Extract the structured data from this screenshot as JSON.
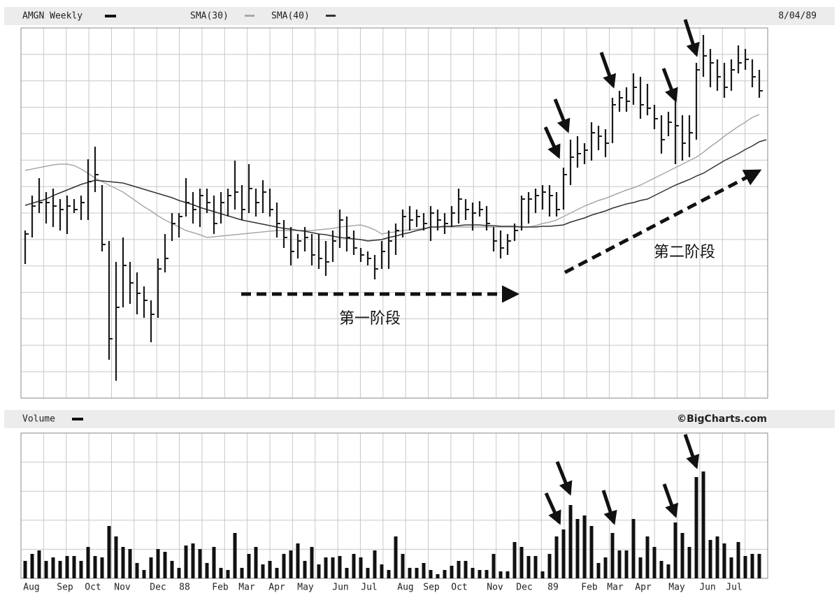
{
  "chart_data": [
    {
      "type": "ohlc",
      "title": "AMGN Weekly",
      "date": "8/04/89",
      "color": "#1a1a1a",
      "ylim": [
        0,
        530
      ],
      "grid": true,
      "annotations": [
        "第一阶段",
        "第二阶段"
      ],
      "high": [
        240,
        290,
        315,
        295,
        300,
        285,
        290,
        285,
        290,
        342,
        360,
        305,
        225,
        195,
        230,
        195,
        180,
        160,
        140,
        200,
        235,
        265,
        265,
        315,
        295,
        300,
        300,
        290,
        295,
        300,
        340,
        305,
        335,
        300,
        312,
        300,
        280,
        255,
        245,
        235,
        245,
        235,
        235,
        225,
        240,
        270,
        260,
        240,
        215,
        210,
        205,
        225,
        240,
        250,
        270,
        275,
        270,
        265,
        275,
        270,
        265,
        275,
        300,
        285,
        280,
        282,
        275,
        245,
        240,
        235,
        250,
        290,
        295,
        300,
        305,
        305,
        295,
        330,
        370,
        375,
        365,
        395,
        390,
        385,
        430,
        440,
        445,
        465,
        460,
        450,
        420,
        405,
        410,
        425,
        405,
        405,
        480,
        520,
        500,
        485,
        480,
        485,
        505,
        500,
        485,
        470
      ],
      "low": [
        192,
        230,
        265,
        250,
        245,
        240,
        235,
        265,
        255,
        255,
        295,
        210,
        55,
        25,
        130,
        135,
        120,
        115,
        80,
        115,
        180,
        225,
        230,
        260,
        250,
        245,
        265,
        235,
        250,
        260,
        270,
        255,
        265,
        260,
        265,
        260,
        230,
        215,
        190,
        200,
        210,
        190,
        185,
        175,
        195,
        215,
        210,
        205,
        195,
        190,
        170,
        185,
        185,
        205,
        230,
        240,
        245,
        240,
        225,
        240,
        235,
        245,
        250,
        255,
        240,
        260,
        240,
        210,
        200,
        205,
        225,
        240,
        250,
        265,
        270,
        260,
        260,
        270,
        305,
        330,
        335,
        340,
        355,
        345,
        365,
        410,
        410,
        420,
        400,
        405,
        385,
        350,
        375,
        335,
        340,
        345,
        370,
        460,
        445,
        440,
        430,
        440,
        465,
        470,
        445,
        430
      ],
      "close": [
        235,
        275,
        280,
        280,
        275,
        270,
        275,
        270,
        280,
        310,
        320,
        220,
        85,
        130,
        190,
        165,
        150,
        140,
        120,
        185,
        200,
        250,
        260,
        280,
        270,
        290,
        280,
        250,
        280,
        290,
        295,
        270,
        300,
        280,
        295,
        270,
        250,
        230,
        210,
        225,
        230,
        205,
        200,
        195,
        225,
        255,
        230,
        215,
        205,
        200,
        185,
        210,
        225,
        240,
        260,
        255,
        260,
        250,
        265,
        255,
        250,
        265,
        285,
        270,
        265,
        270,
        250,
        225,
        215,
        225,
        240,
        285,
        285,
        290,
        295,
        290,
        270,
        320,
        345,
        350,
        355,
        380,
        375,
        365,
        420,
        430,
        425,
        445,
        420,
        415,
        400,
        370,
        395,
        390,
        365,
        380,
        470,
        490,
        480,
        460,
        445,
        470,
        480,
        485,
        460,
        440
      ],
      "series": [
        {
          "name": "SMA(30)",
          "color": "#a8a8a8",
          "values": [
            326,
            328,
            330,
            332,
            334,
            335,
            335,
            333,
            328,
            322,
            315,
            310,
            305,
            300,
            295,
            288,
            281,
            274,
            268,
            261,
            255,
            250,
            245,
            240,
            237,
            234,
            230,
            231,
            232,
            233,
            234,
            235,
            236,
            237,
            238,
            239,
            240,
            240,
            240,
            240,
            240,
            240,
            241,
            242,
            243,
            245,
            246,
            247,
            248,
            245,
            241,
            235,
            237,
            238,
            240,
            241,
            242,
            243,
            245,
            245,
            245,
            245,
            245,
            245,
            245,
            245,
            245,
            245,
            245,
            245,
            245,
            245,
            245,
            247,
            250,
            252,
            255,
            260,
            265,
            270,
            275,
            279,
            283,
            286,
            290,
            294,
            298,
            301,
            305,
            310,
            315,
            320,
            325,
            330,
            335,
            340,
            345,
            352,
            360,
            367,
            375,
            382,
            389,
            395,
            402,
            406
          ]
        },
        {
          "name": "SMA(40)",
          "color": "#333333",
          "values": [
            276,
            279,
            282,
            285,
            290,
            294,
            298,
            302,
            306,
            309,
            312,
            311,
            310,
            309,
            308,
            305,
            302,
            299,
            296,
            293,
            290,
            287,
            283,
            280,
            277,
            273,
            270,
            267,
            264,
            261,
            258,
            255,
            253,
            251,
            249,
            247,
            245,
            243,
            242,
            240,
            239,
            237,
            235,
            234,
            232,
            230,
            229,
            228,
            227,
            225,
            226,
            227,
            230,
            232,
            235,
            237,
            240,
            242,
            245,
            245,
            246,
            246,
            247,
            248,
            248,
            248,
            247,
            247,
            246,
            246,
            246,
            245,
            245,
            245,
            246,
            246,
            247,
            248,
            252,
            255,
            258,
            262,
            265,
            268,
            272,
            275,
            278,
            280,
            283,
            285,
            290,
            295,
            300,
            305,
            309,
            313,
            318,
            322,
            328,
            334,
            340,
            345,
            350,
            356,
            361,
            367,
            370
          ]
        }
      ]
    },
    {
      "type": "bar",
      "title": "Volume",
      "source": "©BigCharts.com",
      "color": "#111111",
      "ylim": [
        0,
        208
      ],
      "grid": true,
      "x_labels": [
        "Aug",
        "Sep",
        "Oct",
        "Nov",
        "Dec",
        "88",
        "Feb",
        "Mar",
        "Apr",
        "May",
        "Jun",
        "Jul",
        "Aug",
        "Sep",
        "Oct",
        "Nov",
        "Dec",
        "89",
        "Feb",
        "Mar",
        "Apr",
        "May",
        "Jun",
        "Jul"
      ],
      "values": [
        25,
        35,
        40,
        25,
        30,
        25,
        32,
        32,
        25,
        45,
        32,
        30,
        75,
        60,
        45,
        42,
        22,
        12,
        30,
        42,
        38,
        25,
        15,
        47,
        50,
        42,
        22,
        45,
        15,
        12,
        65,
        15,
        35,
        45,
        20,
        25,
        15,
        35,
        40,
        50,
        25,
        45,
        20,
        30,
        30,
        32,
        15,
        35,
        30,
        15,
        40,
        20,
        12,
        60,
        35,
        15,
        15,
        22,
        12,
        6,
        12,
        18,
        25,
        25,
        15,
        12,
        12,
        35,
        10,
        10,
        52,
        45,
        32,
        32,
        10,
        35,
        60,
        70,
        105,
        85,
        90,
        75,
        22,
        30,
        65,
        40,
        40,
        85,
        30,
        60,
        45,
        25,
        20,
        80,
        65,
        45,
        145,
        153,
        55,
        60,
        50,
        30,
        52,
        32,
        35,
        35
      ]
    }
  ]
}
